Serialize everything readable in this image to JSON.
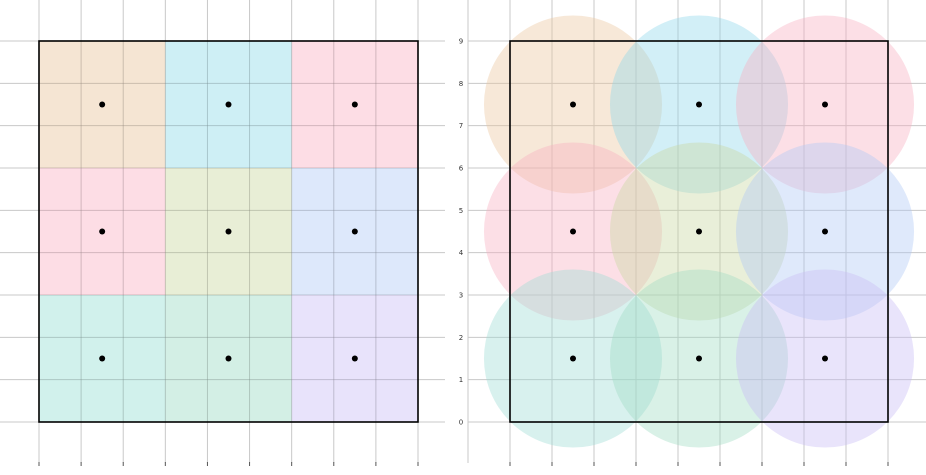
{
  "chart_data": [
    {
      "type": "diagram",
      "title": "",
      "xlim": [
        0,
        9
      ],
      "ylim": [
        0,
        9
      ],
      "grid": true,
      "x_ticks": [
        "0",
        "1",
        "2",
        "3",
        "4",
        "5",
        "6",
        "7",
        "8",
        "9"
      ],
      "y_ticks": [],
      "cells": [
        {
          "row": 2,
          "col": 0,
          "color": "#f2dcc4",
          "center": [
            1.5,
            7.5
          ]
        },
        {
          "row": 2,
          "col": 1,
          "color": "#bde9f2",
          "center": [
            4.5,
            7.5
          ]
        },
        {
          "row": 2,
          "col": 2,
          "color": "#fcd2dc",
          "center": [
            7.5,
            7.5
          ]
        },
        {
          "row": 1,
          "col": 0,
          "color": "#fcd2dc",
          "center": [
            1.5,
            4.5
          ]
        },
        {
          "row": 1,
          "col": 1,
          "color": "#e0e8c8",
          "center": [
            4.5,
            4.5
          ]
        },
        {
          "row": 1,
          "col": 2,
          "color": "#d2e0fa",
          "center": [
            7.5,
            4.5
          ]
        },
        {
          "row": 0,
          "col": 0,
          "color": "#c2ece6",
          "center": [
            1.5,
            1.5
          ]
        },
        {
          "row": 0,
          "col": 1,
          "color": "#c4eadc",
          "center": [
            4.5,
            1.5
          ]
        },
        {
          "row": 0,
          "col": 2,
          "color": "#e0dafa",
          "center": [
            7.5,
            1.5
          ]
        }
      ]
    },
    {
      "type": "diagram",
      "title": "",
      "xlim": [
        0,
        9
      ],
      "ylim": [
        0,
        9
      ],
      "grid": true,
      "x_ticks": [
        "0",
        "1",
        "2",
        "3",
        "4",
        "5",
        "6",
        "7",
        "8",
        "9"
      ],
      "y_ticks": [
        "0",
        "1",
        "2",
        "3",
        "4",
        "5",
        "6",
        "7",
        "8",
        "9"
      ],
      "circle_radius": 2.12,
      "circles": [
        {
          "center": [
            1.5,
            7.5
          ],
          "color": "#ebc69e"
        },
        {
          "center": [
            4.5,
            7.5
          ],
          "color": "#8ed8ea"
        },
        {
          "center": [
            7.5,
            7.5
          ],
          "color": "#f8aec0"
        },
        {
          "center": [
            1.5,
            4.5
          ],
          "color": "#f8aec0"
        },
        {
          "center": [
            4.5,
            4.5
          ],
          "color": "#c8d8a0"
        },
        {
          "center": [
            7.5,
            4.5
          ],
          "color": "#aec8f6"
        },
        {
          "center": [
            1.5,
            1.5
          ],
          "color": "#9edcd4"
        },
        {
          "center": [
            4.5,
            1.5
          ],
          "color": "#a0dcc4"
        },
        {
          "center": [
            7.5,
            1.5
          ],
          "color": "#c8bcf4"
        }
      ]
    }
  ]
}
